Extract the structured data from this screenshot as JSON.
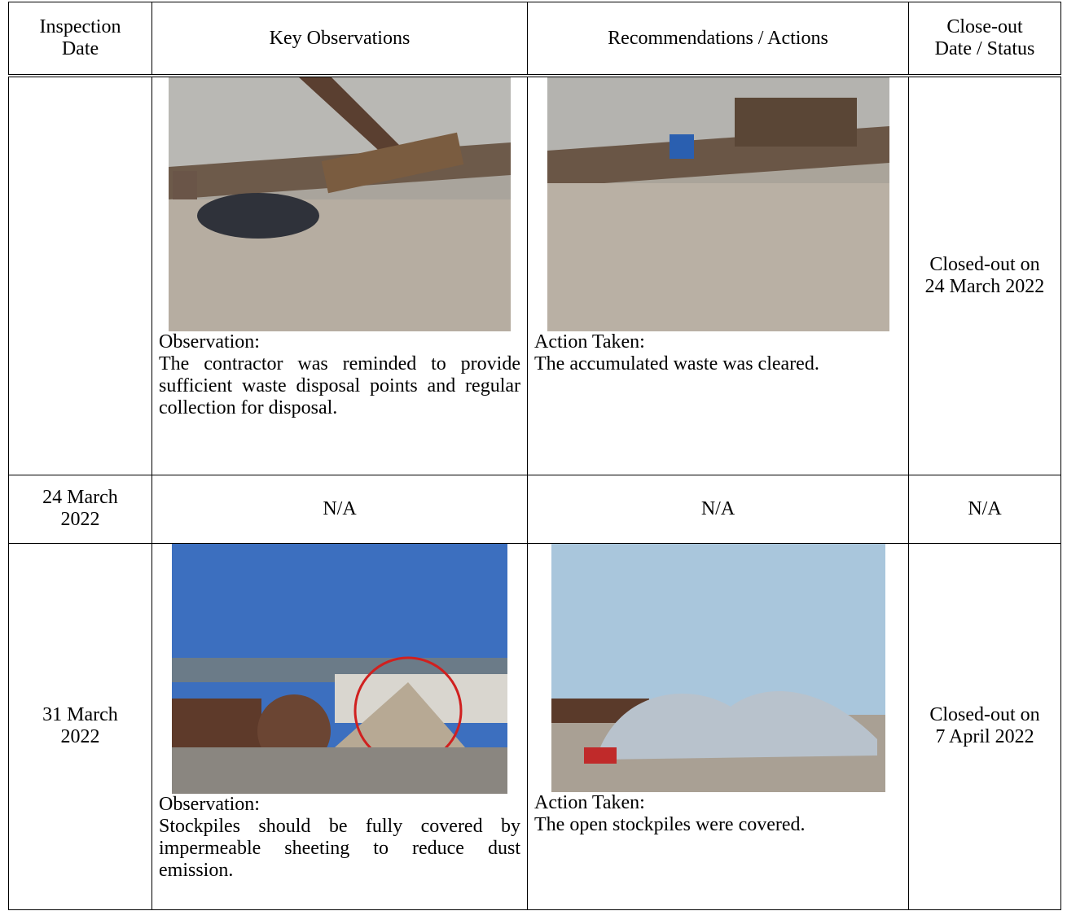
{
  "table": {
    "header": [
      "Inspection Date",
      "Key Observations",
      "Recommendations / Actions",
      "Close-out Date / Status"
    ],
    "rows": [
      {
        "observation": {
          "label": "Observation:",
          "text": "The contractor was reminded to provide sufficient waste disposal points and regular collection for disposal."
        },
        "action": {
          "label": "Action Taken:",
          "text": "The accumulated waste was cleared."
        },
        "status": "Closed-out on 24 March 2022"
      },
      {
        "date": "24 March 2022",
        "observation": "N/A",
        "action": "N/A",
        "status": "N/A"
      },
      {
        "date": "31 March 2022",
        "observation": {
          "label": "Observation:",
          "text": "Stockpiles should be fully covered by impermeable sheeting to reduce dust emission."
        },
        "action": {
          "label": "Action Taken:",
          "text": "The open stockpiles were covered."
        },
        "status": "Closed-out on 7 April 2022"
      }
    ]
  }
}
